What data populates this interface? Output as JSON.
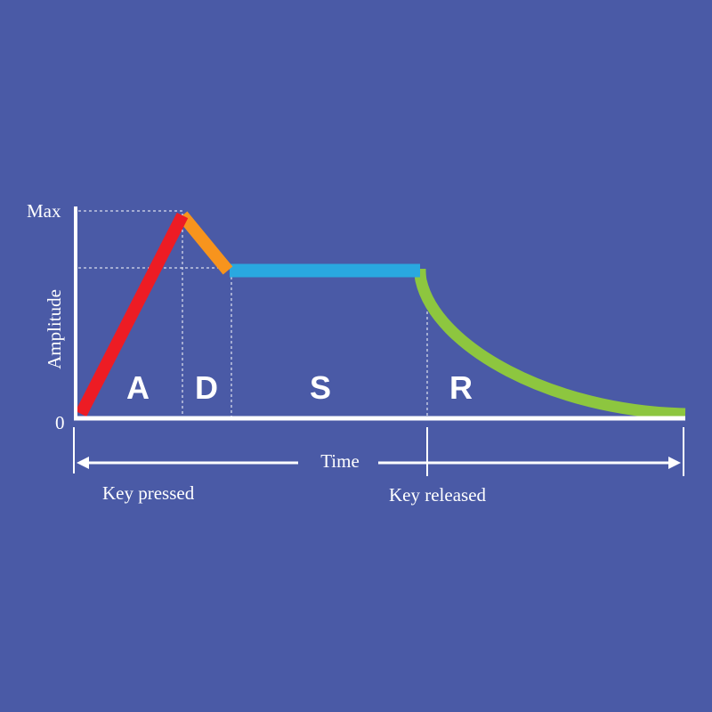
{
  "axis": {
    "y_max_label": "Max",
    "y_zero_label": "0",
    "y_title": "Amplitude",
    "x_title": "Time"
  },
  "phases": [
    "A",
    "D",
    "S",
    "R"
  ],
  "events": {
    "key_pressed": "Key pressed",
    "key_released": "Key released"
  }
}
